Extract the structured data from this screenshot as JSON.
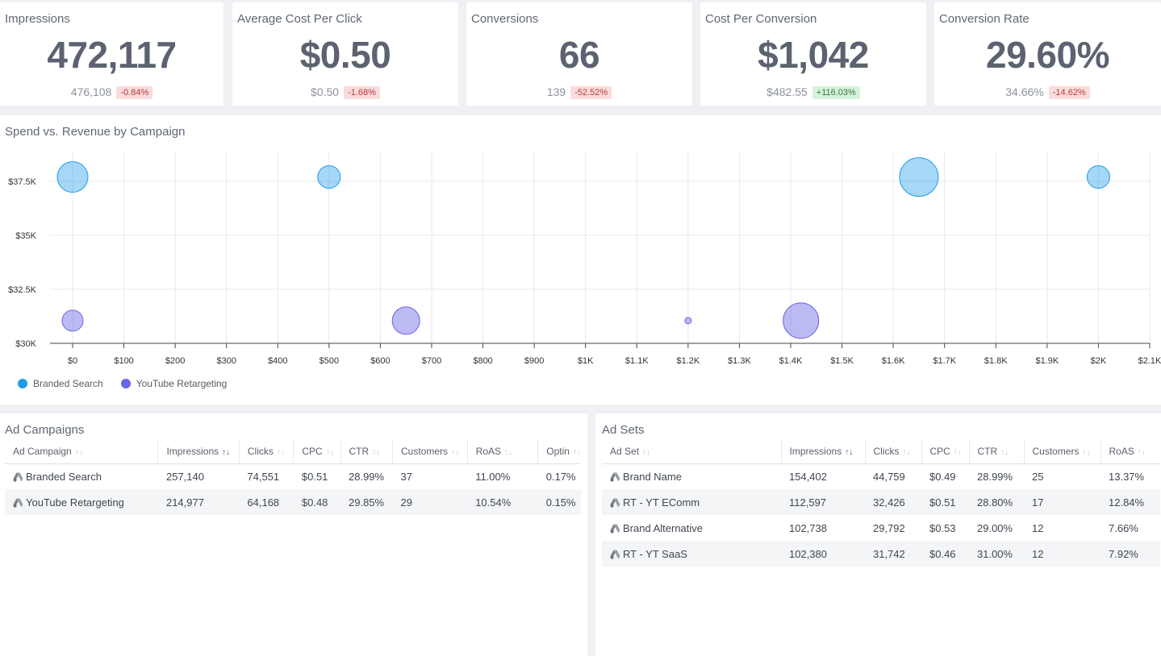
{
  "kpis": [
    {
      "title": "Impressions",
      "value": "472,117",
      "previous": "476,108",
      "change": "-0.84%",
      "trend": "neg"
    },
    {
      "title": "Average Cost Per Click",
      "value": "$0.50",
      "previous": "$0.50",
      "change": "-1.68%",
      "trend": "neg"
    },
    {
      "title": "Conversions",
      "value": "66",
      "previous": "139",
      "change": "-52.52%",
      "trend": "neg"
    },
    {
      "title": "Cost Per Conversion",
      "value": "$1,042",
      "previous": "$482.55",
      "change": "+116.03%",
      "trend": "pos"
    },
    {
      "title": "Conversion Rate",
      "value": "29.60%",
      "previous": "34.66%",
      "change": "-14.62%",
      "trend": "neg"
    }
  ],
  "chart_panel": {
    "title": "Spend vs. Revenue by Campaign"
  },
  "chart_data": {
    "type": "scatter",
    "title": "Spend vs. Revenue by Campaign",
    "x_ticks": [
      "$0",
      "$100",
      "$200",
      "$300",
      "$400",
      "$500",
      "$600",
      "$700",
      "$800",
      "$900",
      "$1K",
      "$1.1K",
      "$1.2K",
      "$1.3K",
      "$1.4K",
      "$1.5K",
      "$1.6K",
      "$1.7K",
      "$1.8K",
      "$1.9K",
      "$2K",
      "$2.1K"
    ],
    "y_ticks": [
      "$30K",
      "$32.5K",
      "$35K",
      "$37.5K"
    ],
    "xlim": [
      0,
      2100
    ],
    "ylim": [
      30000,
      37500
    ],
    "grid": true,
    "legend_position": "bottom-left",
    "series": [
      {
        "name": "Branded Search",
        "color": "#1e9be8",
        "points": [
          {
            "x": 0,
            "y": 37700,
            "size": 19
          },
          {
            "x": 500,
            "y": 37700,
            "size": 14
          },
          {
            "x": 1650,
            "y": 37700,
            "size": 24
          },
          {
            "x": 2000,
            "y": 37700,
            "size": 14
          }
        ]
      },
      {
        "name": "YouTube Retargeting",
        "color": "#6a66e3",
        "points": [
          {
            "x": 0,
            "y": 31050,
            "size": 13
          },
          {
            "x": 650,
            "y": 31050,
            "size": 17
          },
          {
            "x": 1200,
            "y": 31050,
            "size": 4
          },
          {
            "x": 1420,
            "y": 31050,
            "size": 22
          }
        ]
      }
    ]
  },
  "campaigns": {
    "title": "Ad Campaigns",
    "columns": [
      "Ad Campaign",
      "Impressions",
      "Clicks",
      "CPC",
      "CTR",
      "Customers",
      "RoAS",
      "Optin"
    ],
    "sort_column": 1,
    "rows": [
      [
        "Branded Search",
        "257,140",
        "74,551",
        "$0.51",
        "28.99%",
        "37",
        "11.00%",
        "0.17%"
      ],
      [
        "YouTube Retargeting",
        "214,977",
        "64,168",
        "$0.48",
        "29.85%",
        "29",
        "10.54%",
        "0.15%"
      ]
    ]
  },
  "adsets": {
    "title": "Ad Sets",
    "columns": [
      "Ad Set",
      "Impressions",
      "Clicks",
      "CPC",
      "CTR",
      "Customers",
      "RoAS"
    ],
    "sort_column": 1,
    "rows": [
      [
        "Brand Name",
        "154,402",
        "44,759",
        "$0.49",
        "28.99%",
        "25",
        "13.37%"
      ],
      [
        "RT - YT EComm",
        "112,597",
        "32,426",
        "$0.51",
        "28.80%",
        "17",
        "12.84%"
      ],
      [
        "Brand Alternative",
        "102,738",
        "29,792",
        "$0.53",
        "29.00%",
        "12",
        "7.66%"
      ],
      [
        "RT - YT SaaS",
        "102,380",
        "31,742",
        "$0.46",
        "31.00%",
        "12",
        "7.92%"
      ]
    ]
  }
}
